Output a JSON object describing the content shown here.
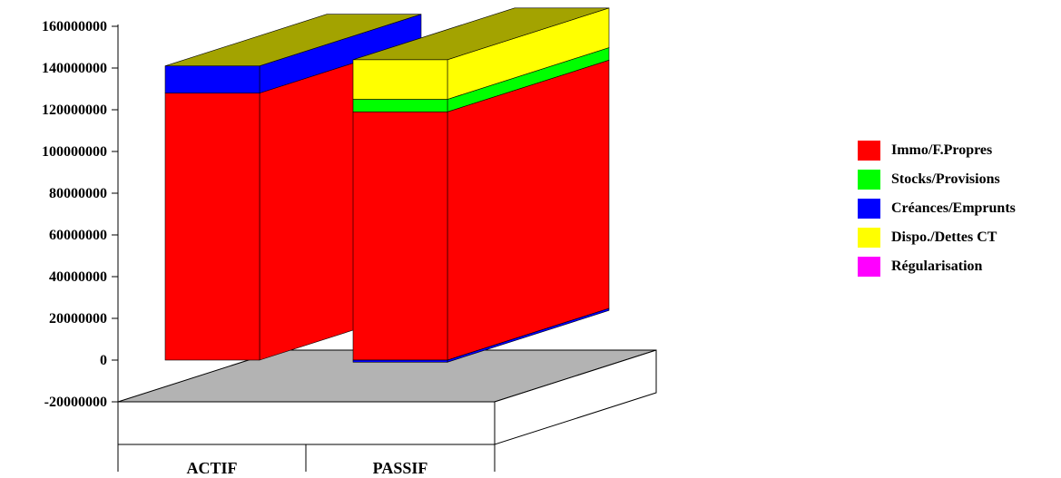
{
  "chart_data": {
    "type": "bar",
    "subtype": "stacked-3d-column",
    "categories": [
      "ACTIF",
      "PASSIF"
    ],
    "series": [
      {
        "name": "Immo/F.Propres",
        "color": "#ff0000",
        "values": [
          128000000,
          119000000
        ]
      },
      {
        "name": "Stocks/Provisions",
        "color": "#00ff00",
        "values": [
          0,
          6000000
        ]
      },
      {
        "name": "Créances/Emprunts",
        "color": "#0000ff",
        "values": [
          13000000,
          -1000000
        ]
      },
      {
        "name": "Dispo./Dettes CT",
        "color": "#ffff00",
        "values": [
          0,
          19000000
        ]
      },
      {
        "name": "Régularisation",
        "color": "#ff00ff",
        "values": [
          0,
          0
        ]
      }
    ],
    "ylim": [
      -20000000,
      160000000
    ],
    "yticks": [
      "160000000",
      "140000000",
      "120000000",
      "100000000",
      "80000000",
      "60000000",
      "40000000",
      "20000000",
      "0",
      "-20000000"
    ],
    "top_face_color": "#a3a300",
    "floor_color": "#b3b3b3",
    "legend_position": "right",
    "grid": false
  }
}
